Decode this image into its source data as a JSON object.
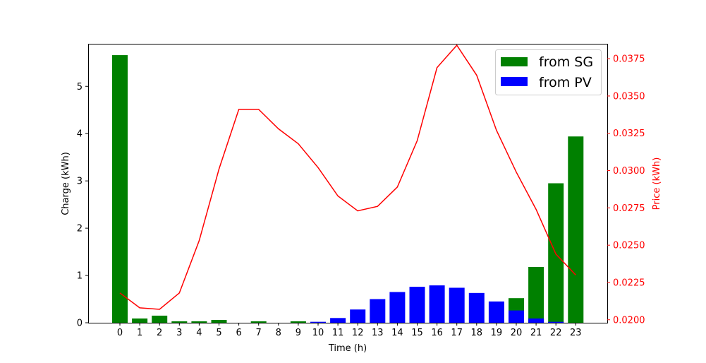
{
  "chart_data": {
    "type": "bar",
    "xlabel": "Time (h)",
    "ylabel": "Charge (kWh)",
    "y2label": "Price (kWh)",
    "categories": [
      "0",
      "1",
      "2",
      "3",
      "4",
      "5",
      "6",
      "7",
      "8",
      "9",
      "10",
      "11",
      "12",
      "13",
      "14",
      "15",
      "16",
      "17",
      "18",
      "19",
      "20",
      "21",
      "22",
      "23"
    ],
    "ylim": [
      0,
      5.9
    ],
    "y2lim": [
      0.0198,
      0.0385
    ],
    "yticks": [
      "0",
      "1",
      "2",
      "3",
      "4",
      "5"
    ],
    "y2ticks": [
      "0.0200",
      "0.0225",
      "0.0250",
      "0.0275",
      "0.0300",
      "0.0325",
      "0.0350",
      "0.0375"
    ],
    "series": [
      {
        "name": "from SG",
        "color": "#008000",
        "values": [
          5.66,
          0.09,
          0.15,
          0.03,
          0.03,
          0.06,
          0.0,
          0.03,
          0.0,
          0.03,
          0.0,
          0.0,
          0.0,
          0.0,
          0.0,
          0.0,
          0.0,
          0.0,
          0.0,
          0.0,
          0.52,
          1.18,
          2.95,
          3.94
        ]
      },
      {
        "name": "from PV",
        "color": "#0000ff",
        "values": [
          0,
          0,
          0,
          0,
          0,
          0,
          0,
          0,
          0,
          0,
          0.02,
          0.1,
          0.28,
          0.5,
          0.65,
          0.76,
          0.79,
          0.74,
          0.63,
          0.45,
          0.26,
          0.09,
          0.02,
          0
        ]
      }
    ],
    "price": {
      "axis": "right",
      "color": "#ff0000",
      "values": [
        0.0218,
        0.0208,
        0.0207,
        0.0218,
        0.0253,
        0.0301,
        0.0341,
        0.0341,
        0.0328,
        0.0318,
        0.0302,
        0.0283,
        0.0273,
        0.0276,
        0.0289,
        0.032,
        0.0369,
        0.0384,
        0.0364,
        0.0327,
        0.0299,
        0.0274,
        0.0244,
        0.023
      ]
    },
    "legend": {
      "position": "top-right",
      "entries": [
        "from SG",
        "from PV"
      ]
    }
  }
}
